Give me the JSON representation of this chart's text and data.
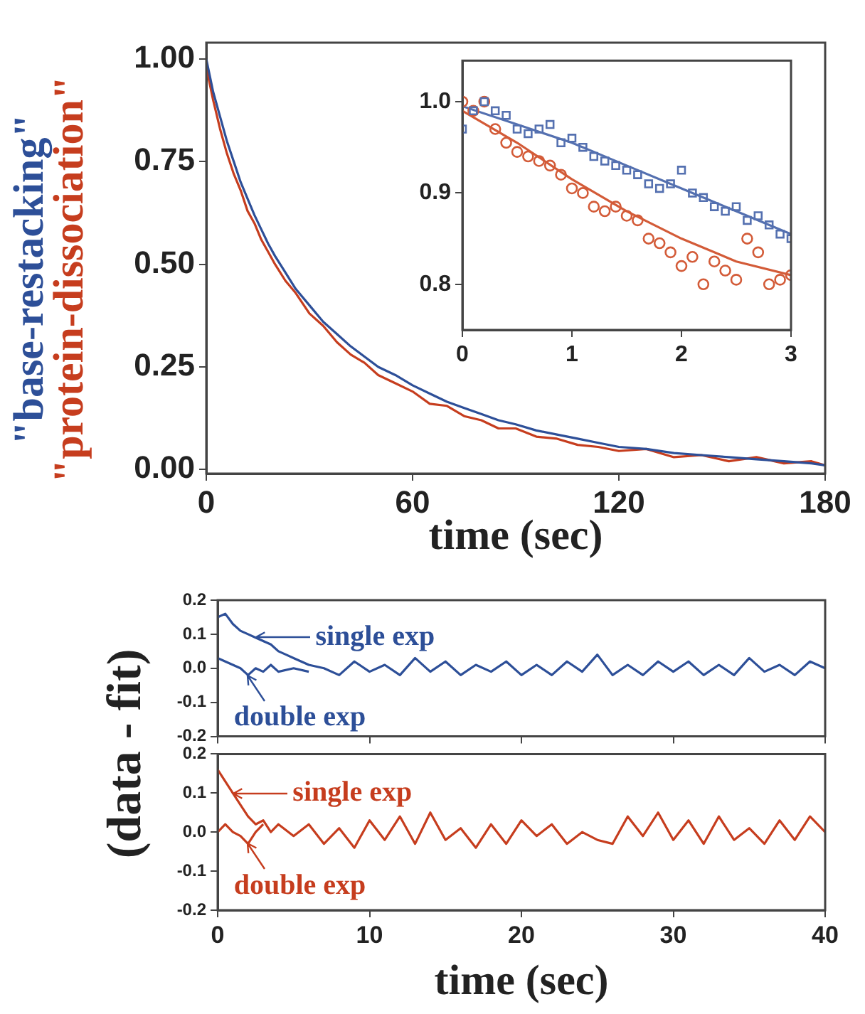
{
  "chart_data": [
    {
      "type": "line",
      "xlabel": "time (sec)",
      "xlim": [
        0,
        180
      ],
      "xticks": [
        0,
        60,
        120,
        180
      ],
      "ylim": [
        -0.01,
        1.04
      ],
      "yticks": [
        {
          "value": 0,
          "label": "0.00"
        },
        {
          "value": 0.25,
          "label": "0.25"
        },
        {
          "value": 0.5,
          "label": "0.50"
        },
        {
          "value": 0.75,
          "label": "0.75"
        },
        {
          "value": 1,
          "label": "1.00"
        }
      ],
      "marker": "none",
      "series": [
        {
          "name": "\"base-restacking\"",
          "color": "#2d4f98",
          "x": [
            0,
            2,
            4,
            6,
            8,
            10,
            12,
            14,
            16,
            18,
            20,
            23,
            26,
            30,
            34,
            38,
            42,
            46,
            50,
            55,
            60,
            65,
            70,
            75,
            80,
            85,
            90,
            96,
            102,
            108,
            114,
            120,
            128,
            136,
            144,
            152,
            160,
            168,
            176,
            180
          ],
          "values": [
            1.0,
            0.92,
            0.86,
            0.8,
            0.75,
            0.7,
            0.66,
            0.62,
            0.585,
            0.55,
            0.52,
            0.48,
            0.44,
            0.4,
            0.36,
            0.33,
            0.3,
            0.275,
            0.25,
            0.23,
            0.205,
            0.185,
            0.165,
            0.15,
            0.135,
            0.12,
            0.11,
            0.095,
            0.085,
            0.075,
            0.065,
            0.055,
            0.05,
            0.04,
            0.035,
            0.03,
            0.025,
            0.02,
            0.015,
            0.01
          ]
        },
        {
          "name": "\"protein-dissociation\"",
          "color": "#c63d1e",
          "x": [
            0,
            2,
            4,
            6,
            8,
            10,
            12,
            14,
            16,
            18,
            20,
            23,
            26,
            30,
            34,
            38,
            42,
            46,
            50,
            55,
            60,
            65,
            70,
            75,
            80,
            85,
            90,
            96,
            102,
            108,
            114,
            120,
            128,
            136,
            144,
            152,
            160,
            168,
            176,
            180
          ],
          "values": [
            0.98,
            0.9,
            0.83,
            0.77,
            0.72,
            0.68,
            0.63,
            0.6,
            0.56,
            0.53,
            0.5,
            0.46,
            0.43,
            0.38,
            0.35,
            0.31,
            0.28,
            0.26,
            0.23,
            0.21,
            0.19,
            0.16,
            0.155,
            0.13,
            0.12,
            0.1,
            0.1,
            0.08,
            0.075,
            0.06,
            0.055,
            0.045,
            0.05,
            0.03,
            0.035,
            0.02,
            0.03,
            0.015,
            0.02,
            0.01
          ]
        }
      ]
    },
    {
      "type": "scatter",
      "xlim": [
        0,
        3
      ],
      "xticks": [
        0,
        1,
        2,
        3
      ],
      "ylim": [
        0.75,
        1.045
      ],
      "yticks": [
        0.8,
        0.9,
        {
          "value": 1,
          "label": "1.0"
        }
      ],
      "series": [
        {
          "color": "#5470b0",
          "marker": "square",
          "x": [
            0,
            0.1,
            0.2,
            0.3,
            0.4,
            0.5,
            0.6,
            0.7,
            0.8,
            0.9,
            1.0,
            1.1,
            1.2,
            1.3,
            1.4,
            1.5,
            1.6,
            1.7,
            1.8,
            1.9,
            2.0,
            2.1,
            2.2,
            2.3,
            2.4,
            2.5,
            2.6,
            2.7,
            2.8,
            2.9,
            3.0
          ],
          "values": [
            0.97,
            0.99,
            1.0,
            0.99,
            0.985,
            0.97,
            0.965,
            0.97,
            0.975,
            0.955,
            0.96,
            0.95,
            0.94,
            0.935,
            0.93,
            0.925,
            0.92,
            0.91,
            0.905,
            0.91,
            0.925,
            0.9,
            0.895,
            0.885,
            0.88,
            0.885,
            0.87,
            0.875,
            0.865,
            0.855,
            0.85
          ]
        },
        {
          "color": "#d35b38",
          "marker": "circle",
          "x": [
            0,
            0.1,
            0.2,
            0.3,
            0.4,
            0.5,
            0.6,
            0.7,
            0.8,
            0.9,
            1.0,
            1.1,
            1.2,
            1.3,
            1.4,
            1.5,
            1.6,
            1.7,
            1.8,
            1.9,
            2.0,
            2.1,
            2.2,
            2.3,
            2.4,
            2.5,
            2.6,
            2.7,
            2.8,
            2.9,
            3.0
          ],
          "values": [
            1.0,
            0.99,
            1.0,
            0.97,
            0.955,
            0.945,
            0.94,
            0.935,
            0.93,
            0.92,
            0.905,
            0.9,
            0.885,
            0.88,
            0.885,
            0.875,
            0.87,
            0.85,
            0.845,
            0.835,
            0.82,
            0.83,
            0.8,
            0.825,
            0.815,
            0.805,
            0.85,
            0.835,
            0.8,
            0.805,
            0.81
          ]
        },
        {
          "type": "line",
          "color": "#5470b0",
          "marker": "none",
          "x": [
            0,
            0.5,
            1,
            1.5,
            2,
            2.5,
            3
          ],
          "values": [
            0.995,
            0.975,
            0.955,
            0.93,
            0.905,
            0.88,
            0.855
          ]
        },
        {
          "type": "line",
          "color": "#d35b38",
          "marker": "none",
          "x": [
            0,
            0.5,
            1,
            1.5,
            2,
            2.5,
            3
          ],
          "values": [
            0.99,
            0.955,
            0.915,
            0.88,
            0.85,
            0.825,
            0.81
          ]
        }
      ]
    },
    {
      "type": "line",
      "ylabel": "(data - fit)",
      "xlim": [
        0,
        40
      ],
      "xticks": [
        0,
        10,
        20,
        30,
        40
      ],
      "ylim": [
        -0.2,
        0.2
      ],
      "yticks": [
        -0.2,
        -0.1,
        {
          "value": 0,
          "label": "0.0"
        },
        0.1,
        0.2
      ],
      "tick_labels": "y",
      "marker": "none",
      "annotations": [
        {
          "text": "single exp",
          "x": 2.5,
          "y": 0.09
        },
        {
          "text": "double exp",
          "x": 2,
          "y": -0.02
        }
      ],
      "series": [
        {
          "color": "#2d4f98",
          "x": [
            0,
            0.5,
            1,
            1.5,
            2,
            2.5,
            3,
            3.5,
            4,
            4.5,
            5,
            6,
            7,
            8,
            9,
            10,
            11,
            12,
            13,
            14,
            15,
            16,
            17,
            18,
            19,
            20,
            21,
            22,
            23,
            24,
            25,
            26,
            27,
            28,
            29,
            30,
            31,
            32,
            33,
            34,
            35,
            36,
            37,
            38,
            39,
            40
          ],
          "values": [
            0.15,
            0.16,
            0.13,
            0.11,
            0.1,
            0.09,
            0.08,
            0.07,
            0.05,
            0.04,
            0.03,
            0.01,
            0.0,
            -0.02,
            0.02,
            -0.01,
            0.01,
            -0.02,
            0.03,
            -0.01,
            0.02,
            -0.02,
            0.01,
            -0.01,
            0.02,
            -0.02,
            0.01,
            -0.02,
            0.02,
            -0.01,
            0.04,
            -0.02,
            0.01,
            -0.02,
            0.02,
            -0.01,
            0.02,
            -0.02,
            0.01,
            -0.02,
            0.03,
            -0.01,
            0.01,
            -0.02,
            0.02,
            0.0
          ]
        },
        {
          "color": "#2d4f98",
          "x": [
            0,
            0.5,
            1,
            1.5,
            2,
            2.5,
            3,
            3.5,
            4,
            5,
            6
          ],
          "values": [
            0.03,
            0.02,
            0.01,
            0.0,
            -0.02,
            0.0,
            -0.01,
            0.01,
            -0.01,
            0.0,
            -0.01
          ]
        }
      ]
    },
    {
      "type": "line",
      "xlabel": "time (sec)",
      "xlim": [
        0,
        40
      ],
      "xticks": [
        0,
        10,
        20,
        30,
        40
      ],
      "ylim": [
        -0.2,
        0.2
      ],
      "yticks": [
        -0.2,
        -0.1,
        {
          "value": 0,
          "label": "0.0"
        },
        0.1,
        0.2
      ],
      "marker": "none",
      "annotations": [
        {
          "text": "single exp",
          "x": 1,
          "y": 0.1
        },
        {
          "text": "double exp",
          "x": 2,
          "y": -0.03
        }
      ],
      "series": [
        {
          "color": "#c63d1e",
          "x": [
            0,
            0.5,
            1,
            1.5,
            2,
            2.5,
            3,
            3.5,
            4,
            5,
            6,
            7,
            8,
            9,
            10,
            11,
            12,
            13,
            14,
            15,
            16,
            17,
            18,
            19,
            20,
            21,
            22,
            23,
            24,
            25,
            26,
            27,
            28,
            29,
            30,
            31,
            32,
            33,
            34,
            35,
            36,
            37,
            38,
            39,
            40
          ],
          "values": [
            0.16,
            0.13,
            0.1,
            0.07,
            0.04,
            0.02,
            0.03,
            0.0,
            0.02,
            -0.01,
            0.02,
            -0.03,
            0.01,
            -0.04,
            0.03,
            -0.02,
            0.04,
            -0.03,
            0.05,
            -0.02,
            0.01,
            -0.04,
            0.02,
            -0.03,
            0.03,
            -0.01,
            0.02,
            -0.03,
            0.0,
            -0.02,
            -0.03,
            0.04,
            -0.01,
            0.05,
            -0.02,
            0.03,
            -0.03,
            0.04,
            -0.02,
            0.01,
            -0.03,
            0.03,
            -0.02,
            0.04,
            0.0
          ]
        },
        {
          "color": "#c63d1e",
          "x": [
            0,
            0.5,
            1,
            1.5,
            2,
            2.5,
            3
          ],
          "values": [
            0.0,
            0.02,
            0.0,
            -0.01,
            -0.03,
            0.0,
            0.02
          ]
        }
      ]
    }
  ]
}
